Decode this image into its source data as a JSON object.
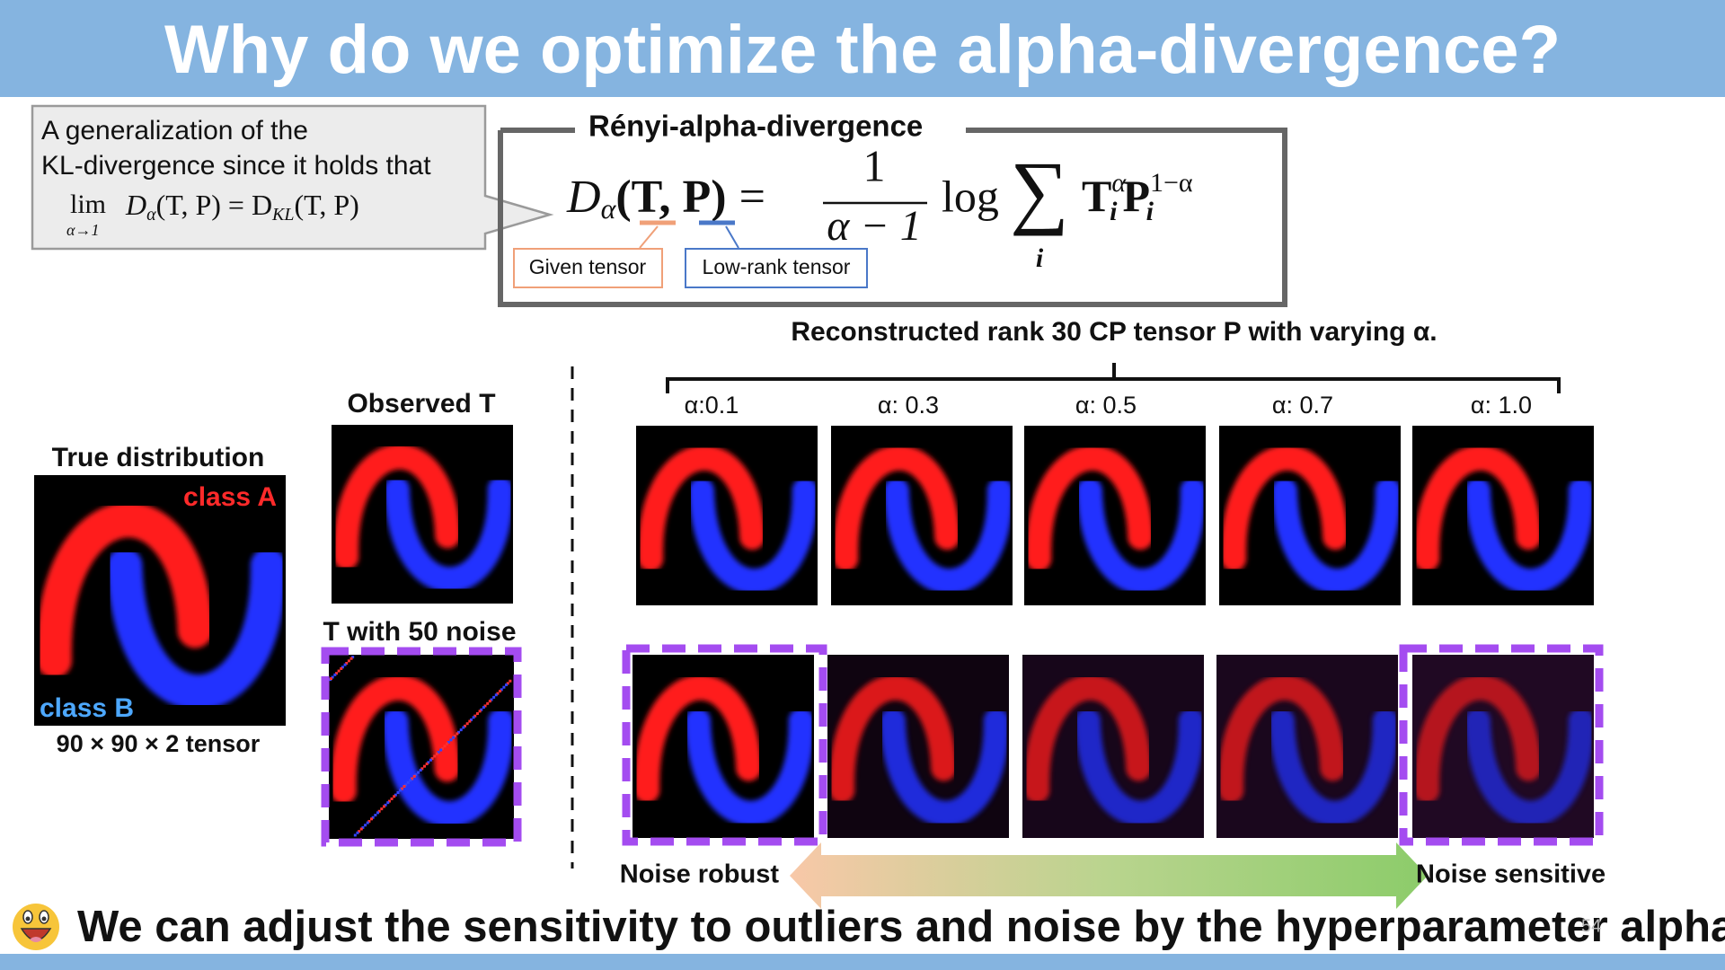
{
  "header": {
    "title": "Why do we optimize the alpha-divergence?"
  },
  "callout": {
    "lines": [
      "A generalization of the",
      "KL-divergence since it holds that"
    ],
    "limit": {
      "op": "lim",
      "under": "α→1",
      "lhs": "D",
      "lhs_sub": "α",
      "args": "(T, P) = D",
      "rhs_sub": "KL",
      "rhs_args": "(T, P)"
    }
  },
  "renyi": {
    "title": "Rényi-alpha-divergence",
    "formula": {
      "d": "D",
      "d_sub": "α",
      "args": "(T, P)",
      "eq": "=",
      "num": "1",
      "den": "α − 1",
      "log": "log",
      "sum": "∑",
      "sum_index": "i",
      "t": "T",
      "t_sub": "i",
      "t_sup": "α",
      "p": "P",
      "p_sub": "i",
      "p_sup": "1−α"
    },
    "given": "Given tensor",
    "low_rank": "Low-rank tensor"
  },
  "reconstruction": {
    "title": "Reconstructed rank 30 CP tensor P with varying α.",
    "alphas": [
      "α:0.1",
      "α: 0.3",
      "α: 0.5",
      "α: 0.7",
      "α: 1.0"
    ]
  },
  "left": {
    "true_title": "True distribution",
    "class_a": "class A",
    "class_b": "class B",
    "shape": "90 × 90 × 2 tensor",
    "observed": "Observed T",
    "noisy": "T with 50 noise"
  },
  "scale": {
    "robust": "Noise robust",
    "sensitive": "Noise sensitive"
  },
  "footer": {
    "message": "We can adjust the sensitivity to outliers and noise by the hyperparameter alpha.",
    "page": "54"
  }
}
